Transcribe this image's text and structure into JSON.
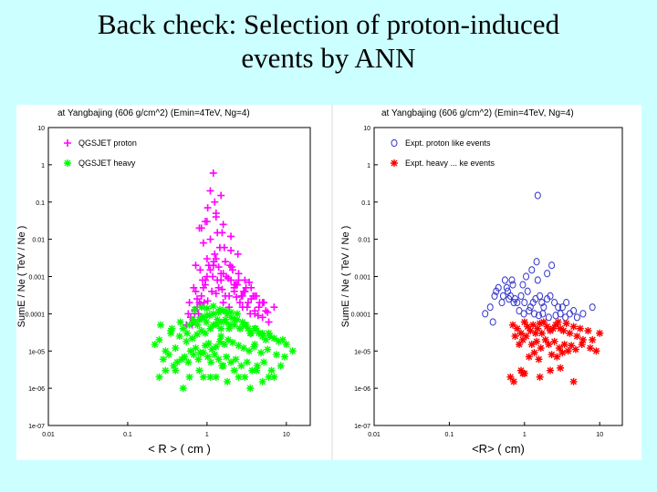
{
  "slide": {
    "title_line1": "Back check: Selection of proton-induced",
    "title_line2": "events by ANN"
  },
  "colors": {
    "background": "#ccffff",
    "qgsjet_proton": "#ff00ff",
    "qgsjet_heavy": "#00ff00",
    "expt_proton": "#3333cc",
    "expt_heavy": "#ff0000"
  },
  "chart_data": [
    {
      "type": "scatter",
      "title": "at Yangbajing (606 g/cm^2) (Emin=4TeV, Ng=4)",
      "xlabel": "< R > ( cm )",
      "ylabel": "SumE / Ne ( TeV / Ne )",
      "xscale": "log",
      "yscale": "log",
      "xlim": [
        0.01,
        20
      ],
      "ylim": [
        1e-07,
        10
      ],
      "x_tick_labels": [
        "0.01",
        "0.1",
        "1",
        "10"
      ],
      "y_tick_labels": [
        "10",
        "1",
        "0.1",
        "0.01",
        "0.001",
        "0.0001",
        "1e-05",
        "1e-06",
        "1e-07"
      ],
      "legend_position": "top-left",
      "series": [
        {
          "name": "QGSJET proton",
          "marker": "plus",
          "color": "#ff00ff",
          "x": [
            0.55,
            0.62,
            0.7,
            0.75,
            0.8,
            0.85,
            0.9,
            0.95,
            1.0,
            1.1,
            1.2,
            1.3,
            1.4,
            1.5,
            1.6,
            1.7,
            1.8,
            1.9,
            2.0,
            2.2,
            2.4,
            2.6,
            2.8,
            3.0,
            3.3,
            3.6,
            4.0,
            4.5,
            5.0,
            5.5,
            6.0,
            0.6,
            0.72,
            0.88,
            1.05,
            1.25,
            1.45,
            1.75,
            2.1,
            2.5,
            3.1,
            3.8,
            4.6,
            0.65,
            0.78,
            0.92,
            1.15,
            1.35,
            1.6,
            1.95,
            2.3,
            2.9,
            3.4,
            4.2,
            5.2,
            0.68,
            0.82,
            1.0,
            1.22,
            1.5,
            1.85,
            2.2,
            2.7,
            3.2,
            4.0,
            0.75,
            0.95,
            1.18,
            1.4,
            1.7,
            2.05,
            2.5,
            3.0,
            3.6,
            0.58,
            0.7,
            0.84,
            1.02,
            1.3,
            1.55,
            1.9,
            2.35,
            2.8,
            3.5,
            4.4,
            5.8,
            0.9,
            1.1,
            1.35,
            1.65,
            2.0,
            2.45,
            0.8,
            1.0,
            1.3,
            1.6,
            2.0,
            1.25,
            1.5,
            1.1,
            0.72,
            0.85,
            1.02,
            1.3,
            1.55,
            1.2,
            0.95,
            2.2,
            3.0,
            4.0,
            5.0,
            7.0
          ],
          "y": [
            5e-05,
            8e-05,
            0.0001,
            0.00015,
            0.0002,
            0.0003,
            0.0005,
            0.0008,
            0.001,
            0.0015,
            0.002,
            0.003,
            0.0005,
            0.0008,
            0.0002,
            0.0003,
            0.0001,
            0.00015,
            0.0008,
            0.0004,
            0.0006,
            0.0002,
            0.0003,
            0.0004,
            0.0002,
            0.00025,
            0.0001,
            0.00015,
            8e-05,
            0.00012,
            6e-05,
            0.0002,
            0.0004,
            0.0008,
            0.002,
            0.004,
            0.006,
            0.001,
            0.0015,
            0.0008,
            0.0005,
            0.0003,
            0.0002,
            5e-05,
            0.0001,
            0.0002,
            0.0004,
            0.0008,
            0.0012,
            0.002,
            0.0006,
            0.0004,
            0.0007,
            0.0003,
            0.0002,
            0.0005,
            0.0015,
            0.003,
            0.0025,
            0.0012,
            0.0009,
            0.0005,
            0.0003,
            0.00015,
            0.00012,
            0.00025,
            0.0006,
            0.001,
            0.0018,
            0.0025,
            0.0018,
            0.0012,
            0.0008,
            0.0005,
            0.0001,
            0.00012,
            0.00018,
            0.00022,
            0.00035,
            0.00045,
            0.0003,
            0.00028,
            0.00015,
            0.0001,
            9e-05,
            0.00011,
            0.008,
            0.01,
            0.015,
            0.006,
            0.005,
            0.004,
            0.02,
            0.03,
            0.05,
            0.025,
            0.012,
            0.1,
            0.15,
            0.2,
            0.002,
            0.02,
            0.07,
            0.04,
            0.015,
            0.6,
            0.03,
            0.0006,
            0.0004,
            0.0003,
            0.0002,
            0.00015
          ]
        },
        {
          "name": "QGSJET heavy",
          "marker": "asterisk",
          "color": "#00ff00",
          "x": [
            0.22,
            0.25,
            0.3,
            0.35,
            0.4,
            0.45,
            0.5,
            0.55,
            0.6,
            0.65,
            0.7,
            0.75,
            0.8,
            0.85,
            0.9,
            0.95,
            1.0,
            1.1,
            1.2,
            1.3,
            1.4,
            1.5,
            1.6,
            1.7,
            1.8,
            1.9,
            2.0,
            2.2,
            2.4,
            2.6,
            2.8,
            3.0,
            3.3,
            3.6,
            4.0,
            4.5,
            5.0,
            5.5,
            6.0,
            7.0,
            8.0,
            9.0,
            10.0,
            12.0,
            0.28,
            0.33,
            0.42,
            0.52,
            0.62,
            0.72,
            0.82,
            0.95,
            1.05,
            1.15,
            1.3,
            1.45,
            1.65,
            1.85,
            2.1,
            2.5,
            2.9,
            3.4,
            3.9,
            4.8,
            5.8,
            7.5,
            9.5,
            0.3,
            0.38,
            0.48,
            0.58,
            0.68,
            0.78,
            0.9,
            1.02,
            1.12,
            1.25,
            1.4,
            1.55,
            1.75,
            2.0,
            2.3,
            2.7,
            3.2,
            3.7,
            4.3,
            5.2,
            6.5,
            8.5,
            0.26,
            0.36,
            0.46,
            0.56,
            0.66,
            0.76,
            0.86,
            0.98,
            1.08,
            1.2,
            1.35,
            1.5,
            1.7,
            1.95,
            2.2,
            2.6,
            3.1,
            3.5,
            4.1,
            5.0,
            6.2,
            0.7,
            0.85,
            1.0,
            1.2,
            1.45,
            1.7,
            2.0,
            2.4,
            0.25,
            0.4,
            0.6,
            0.8,
            1.1,
            1.6,
            2.2,
            3.0,
            4.2,
            6.0,
            0.5,
            0.9,
            1.3,
            1.8,
            2.5,
            3.5,
            5.0,
            7.0,
            0.35,
            1.5,
            4.0
          ],
          "y": [
            1.5e-05,
            2e-05,
            1e-05,
            3e-05,
            1.2e-05,
            2.5e-05,
            4e-05,
            1.8e-05,
            5e-05,
            2.2e-05,
            6e-05,
            2.8e-05,
            7e-05,
            3.5e-05,
            8e-05,
            3e-05,
            9e-05,
            4e-05,
            0.0001,
            5e-05,
            0.00011,
            6e-05,
            0.00012,
            7e-05,
            0.0001,
            4e-05,
            8e-05,
            5e-05,
            7e-05,
            4e-05,
            6e-05,
            5e-05,
            4e-05,
            3e-05,
            4e-05,
            3e-05,
            2.5e-05,
            2e-05,
            3e-05,
            2.2e-05,
            1.8e-05,
            2e-05,
            1.5e-05,
            1e-05,
            6e-06,
            8e-06,
            5e-06,
            7e-06,
            1e-05,
            1.2e-05,
            9e-06,
            1.4e-05,
            1.6e-05,
            1.1e-05,
            1.3e-05,
            1.8e-05,
            1.5e-05,
            2e-05,
            1.7e-05,
            1.4e-05,
            1.2e-05,
            1e-05,
            1.3e-05,
            9e-06,
            1.1e-05,
            8e-06,
            7e-06,
            3e-06,
            4e-06,
            6e-06,
            5e-06,
            8e-06,
            6e-06,
            9e-06,
            7e-06,
            5e-06,
            8e-06,
            6e-06,
            4e-06,
            7e-06,
            5e-06,
            6e-06,
            4e-06,
            5e-06,
            3e-06,
            4e-06,
            5e-06,
            3e-06,
            4e-06,
            5e-05,
            4e-05,
            6e-05,
            3e-05,
            7e-05,
            5e-05,
            8e-05,
            6e-05,
            9e-05,
            5e-05,
            7e-05,
            4e-05,
            6e-05,
            5e-05,
            7e-05,
            4e-05,
            5e-05,
            3e-05,
            4e-05,
            3e-05,
            2.5e-05,
            0.00013,
            0.00015,
            0.00014,
            0.00016,
            0.00013,
            0.00012,
            0.00011,
            0.0001,
            2e-06,
            3e-06,
            2e-06,
            3e-06,
            2e-06,
            4e-06,
            3e-06,
            2e-06,
            3e-06,
            2e-06,
            1e-06,
            2e-06,
            2e-06,
            1.5e-06,
            2e-06,
            1e-06,
            1.5e-06,
            2e-06,
            3.5e-05,
            2.5e-05,
            1.5e-05
          ]
        }
      ]
    },
    {
      "type": "scatter",
      "title": "at Yangbajing (606 g/cm^2) (Emin=4TeV, Ng=4)",
      "xlabel": "<R> ( cm)",
      "ylabel": "SumE / Ne ( TeV / Ne )",
      "xscale": "log",
      "yscale": "log",
      "xlim": [
        0.01,
        20
      ],
      "ylim": [
        1e-07,
        10
      ],
      "x_tick_labels": [
        "0.01",
        "0.1",
        "1",
        "10"
      ],
      "y_tick_labels": [
        "10",
        "1",
        "0.1",
        "0.01",
        "0.001",
        "0.0001",
        "1e-05",
        "1e-06",
        "1e-07"
      ],
      "legend_position": "top-left",
      "series": [
        {
          "name": "Expt. proton like events",
          "marker": "circle",
          "color": "#3333cc",
          "x": [
            1.5,
            0.35,
            0.4,
            0.45,
            0.5,
            0.55,
            0.6,
            0.65,
            0.7,
            0.75,
            0.8,
            0.9,
            1.0,
            1.1,
            1.2,
            1.3,
            1.4,
            1.5,
            1.6,
            1.7,
            1.8,
            2.0,
            2.2,
            2.5,
            2.8,
            3.2,
            3.6,
            4.0,
            4.5,
            5.0,
            6.0,
            8.0,
            0.42,
            0.52,
            0.62,
            0.72,
            0.85,
            0.98,
            1.15,
            1.35,
            1.55,
            1.75,
            2.1,
            2.6,
            3.0,
            3.5,
            1.25,
            1.45,
            0.68,
            0.58,
            0.95,
            1.05,
            2.3,
            2.0,
            0.3,
            0.38
          ],
          "y": [
            0.15,
            0.00015,
            0.0003,
            0.0005,
            0.0002,
            0.0008,
            0.0004,
            0.0003,
            0.0006,
            0.00025,
            0.0002,
            0.0003,
            0.0002,
            0.0004,
            0.00015,
            0.0002,
            0.00025,
            0.0008,
            0.0003,
            0.0002,
            0.00015,
            0.00025,
            0.0003,
            0.0002,
            0.00015,
            0.00015,
            0.0002,
            0.0001,
            0.00012,
            8e-05,
            0.0001,
            0.00015,
            0.0004,
            0.0003,
            0.00025,
            0.0002,
            0.00012,
            0.0001,
            0.00012,
            0.0001,
            9e-05,
            0.0001,
            8e-05,
            9e-05,
            0.0001,
            8e-05,
            0.0015,
            0.0025,
            0.0008,
            0.0005,
            0.0006,
            0.001,
            0.002,
            0.0012,
            0.0001,
            6e-05
          ]
        },
        {
          "name": "Expt. heavy ... ke events",
          "marker": "asterisk",
          "color": "#ff0000",
          "x": [
            0.7,
            0.75,
            0.8,
            0.9,
            1.0,
            1.1,
            1.2,
            1.3,
            1.4,
            1.5,
            1.6,
            1.7,
            1.8,
            2.0,
            2.2,
            2.4,
            2.6,
            2.8,
            3.0,
            3.3,
            3.6,
            4.0,
            4.5,
            5.0,
            5.5,
            6.0,
            7.0,
            8.0,
            10.0,
            0.85,
            0.95,
            1.05,
            1.25,
            1.45,
            1.65,
            1.9,
            2.1,
            2.5,
            2.9,
            3.4,
            3.8,
            4.2,
            4.8,
            5.8,
            7.5,
            9.0,
            1.15,
            1.35,
            1.55,
            2.3,
            2.7,
            3.2,
            0.65,
            0.9,
            1.0,
            1.6,
            2.2,
            3.0,
            0.72,
            0.95,
            4.5
          ],
          "y": [
            5e-05,
            2.5e-05,
            4e-05,
            3e-05,
            6e-05,
            4.5e-05,
            3.5e-05,
            5e-05,
            3e-05,
            4e-05,
            5.5e-05,
            3e-05,
            6e-05,
            4.5e-05,
            3.5e-05,
            4e-05,
            5e-05,
            6e-05,
            4e-05,
            3.5e-05,
            5.5e-05,
            3e-05,
            4.5e-05,
            2.5e-05,
            4e-05,
            2e-05,
            3.5e-05,
            2e-05,
            3e-05,
            1.5e-05,
            2e-05,
            2.5e-05,
            1.5e-05,
            1.8e-05,
            1.2e-05,
            2e-05,
            1.5e-05,
            1.8e-05,
            1.2e-05,
            1.5e-05,
            1e-05,
            1.4e-05,
            1.1e-05,
            1.5e-05,
            1.2e-05,
            1e-05,
            7e-06,
            9e-06,
            6e-06,
            8e-06,
            7e-06,
            9e-06,
            2e-06,
            3e-06,
            2.5e-06,
            2e-06,
            3e-06,
            3.5e-06,
            1.5e-06,
            2.5e-06,
            1.5e-06
          ]
        }
      ]
    }
  ]
}
